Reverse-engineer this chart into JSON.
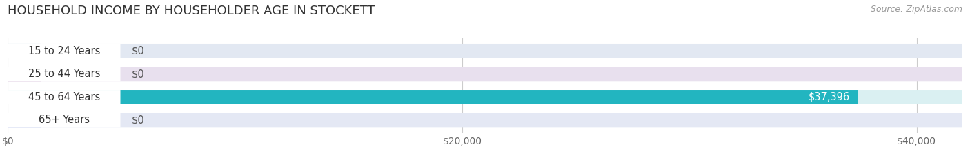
{
  "title": "HOUSEHOLD INCOME BY HOUSEHOLDER AGE IN STOCKETT",
  "source": "Source: ZipAtlas.com",
  "categories": [
    "15 to 24 Years",
    "25 to 44 Years",
    "45 to 64 Years",
    "65+ Years"
  ],
  "values": [
    0,
    0,
    37396,
    0
  ],
  "bar_colors": [
    "#7bbcd8",
    "#c4a0c4",
    "#22b5c0",
    "#a8b4e8"
  ],
  "bar_bg_colors": [
    "#e2e8f2",
    "#e8e0ee",
    "#daf0f2",
    "#e4e8f4"
  ],
  "label_bg_colors": [
    "#c8d8ee",
    "#d8bcd8",
    "#22b5c0",
    "#c0c8f0"
  ],
  "xlim": [
    0,
    42000
  ],
  "xticks": [
    0,
    20000,
    40000
  ],
  "xtick_labels": [
    "$0",
    "$20,000",
    "$40,000"
  ],
  "value_label_color_inside": "#ffffff",
  "value_label_color_outside": "#555555",
  "title_fontsize": 13,
  "source_fontsize": 9,
  "label_fontsize": 10.5,
  "tick_fontsize": 10,
  "bg_color": "#ffffff"
}
